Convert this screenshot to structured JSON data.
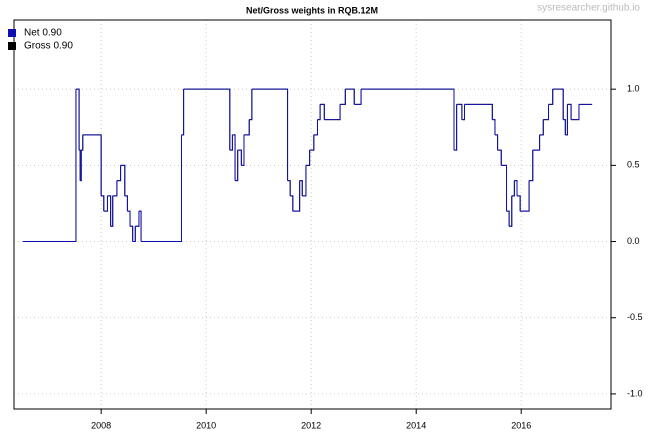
{
  "chart_data": {
    "type": "line",
    "step": "post",
    "title": "Net/Gross weights in  RQB.12M",
    "watermark": "sysresearcher.github.io",
    "x": [
      2006.51,
      2007.52,
      2007.58,
      2007.6,
      2007.62,
      2007.65,
      2007.98,
      2008.0,
      2008.05,
      2008.12,
      2008.18,
      2008.22,
      2008.3,
      2008.37,
      2008.45,
      2008.5,
      2008.55,
      2008.6,
      2008.65,
      2008.72,
      2008.76,
      2009.53,
      2009.57,
      2010.45,
      2010.5,
      2010.55,
      2010.6,
      2010.67,
      2010.72,
      2010.82,
      2010.87,
      2011.55,
      2011.6,
      2011.65,
      2011.78,
      2011.83,
      2011.9,
      2011.97,
      2012.05,
      2012.12,
      2012.17,
      2012.25,
      2012.55,
      2012.65,
      2012.82,
      2012.95,
      2014.72,
      2014.77,
      2014.87,
      2014.92,
      2015.45,
      2015.5,
      2015.55,
      2015.62,
      2015.72,
      2015.77,
      2015.82,
      2015.87,
      2015.92,
      2015.98,
      2016.15,
      2016.22,
      2016.35,
      2016.42,
      2016.52,
      2016.6,
      2016.8,
      2016.84,
      2016.88,
      2016.95,
      2017.1,
      2017.35
    ],
    "series": [
      {
        "name": "Gross 0.90",
        "color": "#000000",
        "values": [
          0,
          1.0,
          0.6,
          0.4,
          0.6,
          0.7,
          0.7,
          0.3,
          0.2,
          0.3,
          0.1,
          0.3,
          0.4,
          0.5,
          0.3,
          0.2,
          0.1,
          0,
          0.1,
          0.2,
          0,
          0.7,
          1.0,
          0.6,
          0.7,
          0.4,
          0.6,
          0.5,
          0.7,
          0.8,
          1.0,
          0.4,
          0.3,
          0.2,
          0.4,
          0.3,
          0.5,
          0.6,
          0.7,
          0.8,
          0.9,
          0.8,
          0.9,
          1.0,
          0.9,
          1.0,
          0.6,
          0.9,
          0.8,
          0.9,
          0.8,
          0.7,
          0.6,
          0.5,
          0.2,
          0.1,
          0.3,
          0.4,
          0.3,
          0.2,
          0.4,
          0.6,
          0.7,
          0.8,
          0.9,
          1.0,
          0.8,
          0.7,
          0.9,
          0.8,
          0.9,
          0.9
        ]
      },
      {
        "name": "Net 0.90",
        "color": "#1010b0",
        "values": [
          0,
          1.0,
          0.6,
          0.4,
          0.6,
          0.7,
          0.7,
          0.3,
          0.2,
          0.3,
          0.1,
          0.3,
          0.4,
          0.5,
          0.3,
          0.2,
          0.1,
          0,
          0.1,
          0.2,
          0,
          0.7,
          1.0,
          0.6,
          0.7,
          0.4,
          0.6,
          0.5,
          0.7,
          0.8,
          1.0,
          0.4,
          0.3,
          0.2,
          0.4,
          0.3,
          0.5,
          0.6,
          0.7,
          0.8,
          0.9,
          0.8,
          0.9,
          1.0,
          0.9,
          1.0,
          0.6,
          0.9,
          0.8,
          0.9,
          0.8,
          0.7,
          0.6,
          0.5,
          0.2,
          0.1,
          0.3,
          0.4,
          0.3,
          0.2,
          0.4,
          0.6,
          0.7,
          0.8,
          0.9,
          1.0,
          0.8,
          0.7,
          0.9,
          0.8,
          0.9,
          0.9
        ]
      }
    ],
    "xlim": [
      2006.34,
      2017.71
    ],
    "xticks": [
      2008,
      2010,
      2012,
      2014,
      2016
    ],
    "ylim": [
      -1.099,
      1.454
    ],
    "yticks": [
      {
        "value": -1,
        "label": "-1.0"
      },
      {
        "value": -0.5,
        "label": "-0.5"
      },
      {
        "value": 0,
        "label": "0.0"
      },
      {
        "value": 0.5,
        "label": "0.5"
      },
      {
        "value": 1,
        "label": "1.0"
      }
    ],
    "grid": true
  }
}
